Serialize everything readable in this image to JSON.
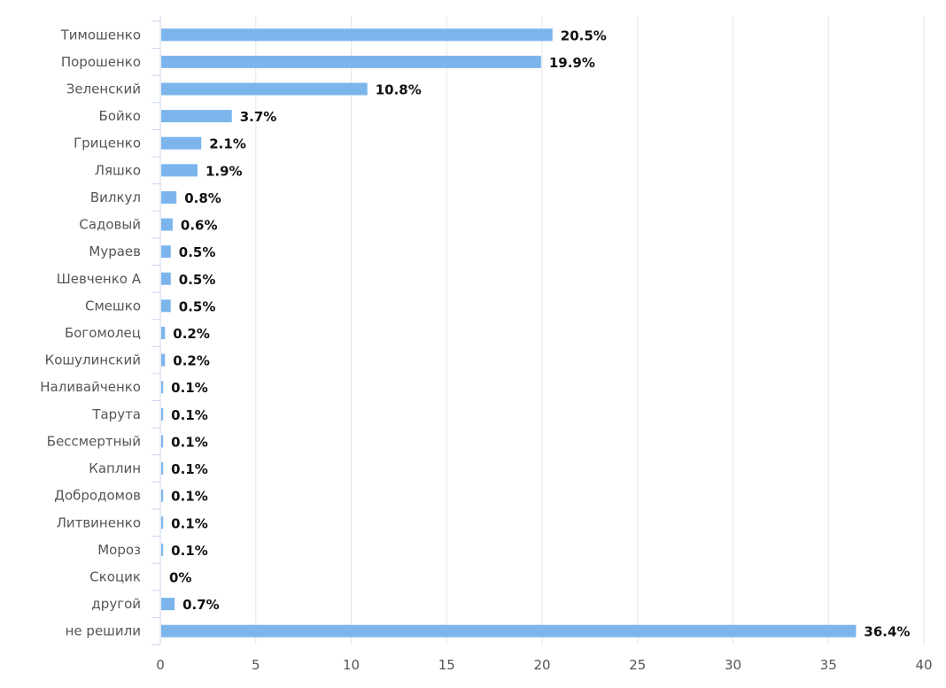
{
  "chart_data": {
    "type": "bar",
    "orientation": "horizontal",
    "categories": [
      "Тимошенко",
      "Порошенко",
      "Зеленский",
      "Бойко",
      "Гриценко",
      "Ляшко",
      "Вилкул",
      "Садовый",
      "Мураев",
      "Шевченко А",
      "Смешко",
      "Богомолец",
      "Кошулинский",
      "Наливайченко",
      "Тарута",
      "Бессмертный",
      "Каплин",
      "Добродомов",
      "Литвиненко",
      "Мороз",
      "Скоцик",
      "другой",
      "не решили"
    ],
    "values": [
      20.5,
      19.9,
      10.8,
      3.7,
      2.1,
      1.9,
      0.8,
      0.6,
      0.5,
      0.5,
      0.5,
      0.2,
      0.2,
      0.1,
      0.1,
      0.1,
      0.1,
      0.1,
      0.1,
      0.1,
      0,
      0.7,
      36.4
    ],
    "value_labels": [
      "20.5%",
      "19.9%",
      "10.8%",
      "3.7%",
      "2.1%",
      "1.9%",
      "0.8%",
      "0.6%",
      "0.5%",
      "0.5%",
      "0.5%",
      "0.2%",
      "0.2%",
      "0.1%",
      "0.1%",
      "0.1%",
      "0.1%",
      "0.1%",
      "0.1%",
      "0.1%",
      "0%",
      "0.7%",
      "36.4%"
    ],
    "x_ticks": [
      "0",
      "5",
      "10",
      "15",
      "20",
      "25",
      "30",
      "35",
      "40"
    ],
    "xlim": [
      0,
      40
    ],
    "grid": true,
    "title": "",
    "xlabel": "",
    "ylabel": "",
    "colors": {
      "bar": "#7cb5ec",
      "grid": "#e6e6e6",
      "axis": "#ccd6eb"
    }
  }
}
